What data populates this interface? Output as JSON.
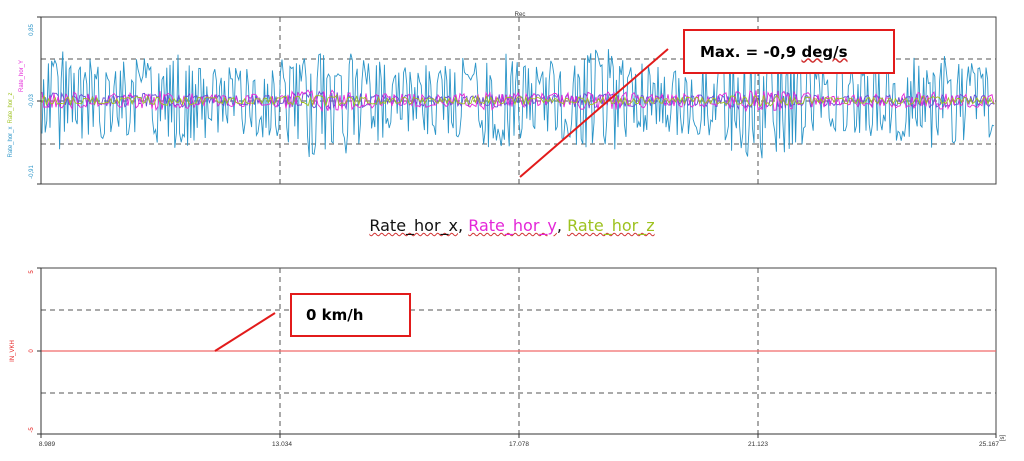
{
  "colors": {
    "rate_x": "#2b95c8",
    "rate_y": "#e426d8",
    "rate_z": "#9ec21f",
    "rate_violet": "#6a4bd6",
    "speed": "#f06a6a",
    "callout_border": "#e21b1b",
    "axis_text_x": "#2b95c8",
    "axis_text_speed": "#e62020"
  },
  "top_chart": {
    "header": "Rec",
    "y_ticks": [
      "0,85",
      "-0,03",
      "-0,91"
    ],
    "y_labels": [
      "Rate_hor_x",
      "Rate_hor_z",
      "Rate_hor_Y"
    ]
  },
  "legend": {
    "x": "Rate_hor_x",
    "y": "Rate_hor_y",
    "z": "Rate_hor_z",
    "separator": ","
  },
  "callouts": {
    "top": {
      "prefix": "Max. = -0,9 ",
      "unit": "deg/s"
    },
    "bottom": {
      "text": "0 km/h"
    }
  },
  "bottom_chart": {
    "y_ticks": [
      "5",
      "0",
      "-5"
    ],
    "y_label": "IN_VKH",
    "x_ticks": [
      "8.989",
      "13.034",
      "17.078",
      "21.123",
      "25.167"
    ],
    "x_unit": "[s]"
  },
  "chart_data": [
    {
      "type": "line",
      "title": "Rec",
      "x_range": [
        8.989,
        25.167
      ],
      "ylim": [
        -0.91,
        0.85
      ],
      "y_ticks": [
        0.85,
        -0.03,
        -0.91
      ],
      "series": [
        {
          "name": "Rate_hor_x",
          "color": "#2b95c8",
          "mean": -0.03,
          "amplitude": 0.65
        },
        {
          "name": "Rate_hor_y",
          "color": "#e426d8",
          "mean": -0.03,
          "amplitude": 0.12
        },
        {
          "name": "Rate_hor_z",
          "color": "#9ec21f",
          "mean": -0.03,
          "amplitude": 0.06
        }
      ],
      "annotation": "Max. = -0,9 deg/s",
      "grid": true
    },
    {
      "type": "line",
      "x_range": [
        8.989,
        25.167
      ],
      "x_ticks": [
        8.989,
        13.034,
        17.078,
        21.123,
        25.167
      ],
      "xlabel": "[s]",
      "ylim": [
        -5,
        5
      ],
      "y_ticks": [
        5,
        0,
        -5
      ],
      "series": [
        {
          "name": "IN_VKH",
          "color": "#f06a6a",
          "x": [
            8.989,
            25.167
          ],
          "y": [
            0,
            0
          ]
        }
      ],
      "annotation": "0 km/h",
      "grid": true
    }
  ]
}
